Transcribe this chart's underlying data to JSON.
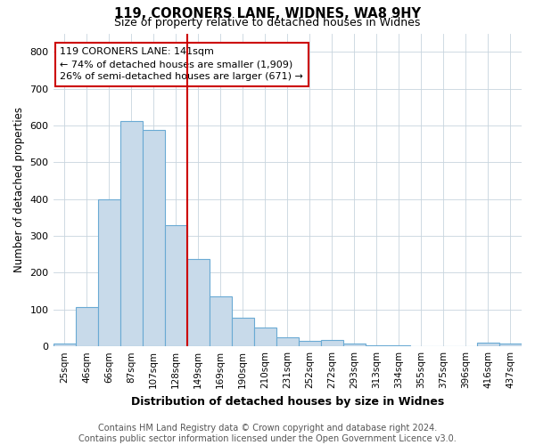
{
  "title_line1": "119, CORONERS LANE, WIDNES, WA8 9HY",
  "title_line2": "Size of property relative to detached houses in Widnes",
  "xlabel": "Distribution of detached houses by size in Widnes",
  "ylabel": "Number of detached properties",
  "bar_labels": [
    "25sqm",
    "46sqm",
    "66sqm",
    "87sqm",
    "107sqm",
    "128sqm",
    "149sqm",
    "169sqm",
    "190sqm",
    "210sqm",
    "231sqm",
    "252sqm",
    "272sqm",
    "293sqm",
    "313sqm",
    "334sqm",
    "355sqm",
    "375sqm",
    "396sqm",
    "416sqm",
    "437sqm"
  ],
  "bar_heights": [
    7,
    106,
    400,
    612,
    588,
    330,
    238,
    135,
    78,
    50,
    25,
    16,
    18,
    8,
    4,
    2,
    0,
    0,
    0,
    10,
    8
  ],
  "bar_color": "#c8daea",
  "bar_edge_color": "#6aaad4",
  "red_line_index": 6,
  "red_line_color": "#cc0000",
  "annotation_text": "119 CORONERS LANE: 141sqm\n← 74% of detached houses are smaller (1,909)\n26% of semi-detached houses are larger (671) →",
  "annotation_box_color": "#cc0000",
  "ylim": [
    0,
    850
  ],
  "yticks": [
    0,
    100,
    200,
    300,
    400,
    500,
    600,
    700,
    800
  ],
  "footnote": "Contains HM Land Registry data © Crown copyright and database right 2024.\nContains public sector information licensed under the Open Government Licence v3.0.",
  "bg_color": "#ffffff",
  "grid_color": "#c8d4de"
}
